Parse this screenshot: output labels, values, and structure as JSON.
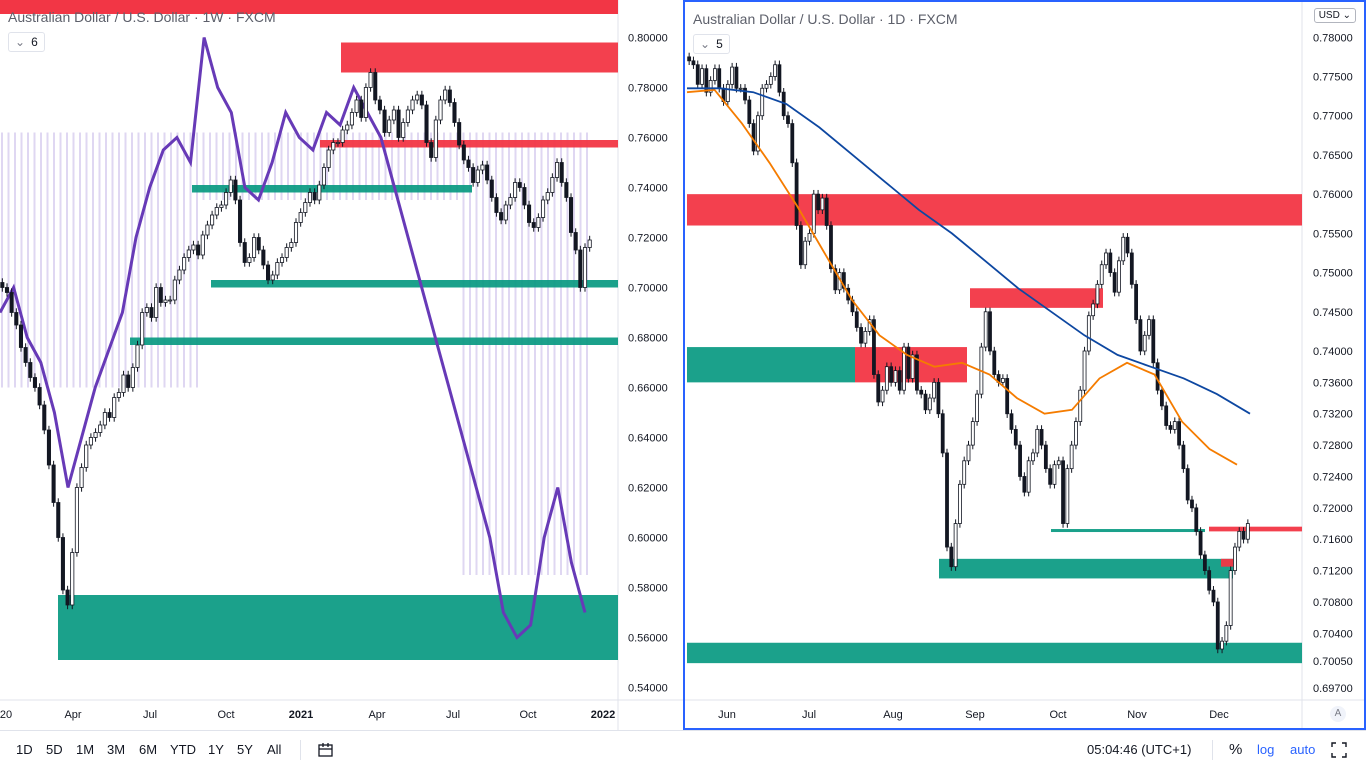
{
  "left_chart": {
    "title": "Australian Dollar / U.S. Dollar · 1W · FXCM",
    "interval_badge": "6"
  },
  "right_chart": {
    "title": "Australian Dollar / U.S. Dollar · 1D · FXCM",
    "interval_badge": "5",
    "currency": "USD",
    "auto_label": "A"
  },
  "bottom_bar": {
    "ranges": [
      "1D",
      "5D",
      "1M",
      "3M",
      "6M",
      "YTD",
      "1Y",
      "5Y",
      "All"
    ],
    "time": "05:04:46 (UTC+1)",
    "percent": "%",
    "log": "log",
    "auto": "auto"
  },
  "colors": {
    "up": "#ffffff",
    "down": "#131722",
    "supply": "#f23645",
    "demand": "#089981",
    "indicator": "#673ab7",
    "ma_fast": "#f57c00",
    "ma_slow": "#0d47a1",
    "accent": "#2962ff"
  },
  "chart_data": [
    {
      "type": "candlestick",
      "title": "Australian Dollar / U.S. Dollar · 1W · FXCM",
      "yticks": [
        "0.80000",
        "0.78000",
        "0.76000",
        "0.74000",
        "0.72000",
        "0.70000",
        "0.68000",
        "0.66000",
        "0.64000",
        "0.62000",
        "0.60000",
        "0.58000",
        "0.56000",
        "0.54000"
      ],
      "ylim": [
        0.535,
        0.815
      ],
      "xticks": [
        "20",
        "Apr",
        "Jul",
        "Oct",
        "2021",
        "Apr",
        "Jul",
        "Oct",
        "2022"
      ],
      "closes": [
        0.7,
        0.698,
        0.69,
        0.685,
        0.676,
        0.67,
        0.664,
        0.66,
        0.653,
        0.643,
        0.629,
        0.614,
        0.6,
        0.579,
        0.573,
        0.594,
        0.62,
        0.628,
        0.637,
        0.64,
        0.642,
        0.645,
        0.65,
        0.648,
        0.656,
        0.658,
        0.665,
        0.66,
        0.668,
        0.677,
        0.69,
        0.692,
        0.688,
        0.7,
        0.694,
        0.695,
        0.695,
        0.703,
        0.707,
        0.712,
        0.715,
        0.717,
        0.713,
        0.721,
        0.725,
        0.729,
        0.732,
        0.733,
        0.738,
        0.743,
        0.735,
        0.718,
        0.71,
        0.712,
        0.72,
        0.715,
        0.709,
        0.703,
        0.705,
        0.71,
        0.712,
        0.716,
        0.718,
        0.726,
        0.73,
        0.734,
        0.738,
        0.735,
        0.741,
        0.748,
        0.755,
        0.758,
        0.758,
        0.763,
        0.765,
        0.77,
        0.775,
        0.768,
        0.78,
        0.786,
        0.775,
        0.771,
        0.762,
        0.767,
        0.771,
        0.76,
        0.766,
        0.771,
        0.775,
        0.777,
        0.773,
        0.758,
        0.752,
        0.767,
        0.775,
        0.779,
        0.774,
        0.766,
        0.757,
        0.751,
        0.748,
        0.742,
        0.747,
        0.749,
        0.743,
        0.736,
        0.73,
        0.727,
        0.733,
        0.736,
        0.742,
        0.74,
        0.733,
        0.726,
        0.724,
        0.728,
        0.735,
        0.738,
        0.744,
        0.75,
        0.742,
        0.736,
        0.722,
        0.715,
        0.7,
        0.716,
        0.719
      ],
      "zones": [
        {
          "kind": "supply",
          "from": 0.786,
          "to": 0.798
        },
        {
          "kind": "supply",
          "from": 0.756,
          "to": 0.759
        },
        {
          "kind": "demand",
          "from": 0.738,
          "to": 0.741
        },
        {
          "kind": "demand",
          "from": 0.7,
          "to": 0.703
        },
        {
          "kind": "demand",
          "from": 0.677,
          "to": 0.68
        },
        {
          "kind": "demand",
          "from": 0.551,
          "to": 0.577
        }
      ]
    },
    {
      "type": "candlestick",
      "title": "Australian Dollar / U.S. Dollar · 1D · FXCM",
      "yticks": [
        "0.78000",
        "0.77500",
        "0.77000",
        "0.76500",
        "0.76000",
        "0.75500",
        "0.75000",
        "0.74500",
        "0.74000",
        "0.73600",
        "0.73200",
        "0.72800",
        "0.72400",
        "0.72000",
        "0.71600",
        "0.71200",
        "0.70800",
        "0.70400",
        "0.70050",
        "0.69700"
      ],
      "ylim": [
        0.6955,
        0.7845
      ],
      "xticks": [
        "Jun",
        "Jul",
        "Aug",
        "Sep",
        "Oct",
        "Nov",
        "Dec"
      ],
      "closes": [
        0.777,
        0.7765,
        0.774,
        0.776,
        0.773,
        0.7745,
        0.776,
        0.7735,
        0.7718,
        0.774,
        0.7762,
        0.7735,
        0.7735,
        0.772,
        0.769,
        0.7655,
        0.77,
        0.7735,
        0.774,
        0.775,
        0.7765,
        0.773,
        0.77,
        0.769,
        0.764,
        0.756,
        0.751,
        0.754,
        0.755,
        0.76,
        0.758,
        0.7595,
        0.756,
        0.7505,
        0.7478,
        0.75,
        0.748,
        0.7465,
        0.745,
        0.743,
        0.741,
        0.7425,
        0.744,
        0.737,
        0.7335,
        0.735,
        0.738,
        0.736,
        0.7375,
        0.735,
        0.7405,
        0.7365,
        0.7395,
        0.735,
        0.7345,
        0.7325,
        0.734,
        0.736,
        0.732,
        0.727,
        0.715,
        0.7125,
        0.718,
        0.723,
        0.726,
        0.728,
        0.731,
        0.7345,
        0.7405,
        0.745,
        0.74,
        0.737,
        0.736,
        0.7365,
        0.732,
        0.73,
        0.728,
        0.724,
        0.722,
        0.726,
        0.727,
        0.73,
        0.728,
        0.725,
        0.723,
        0.7255,
        0.726,
        0.718,
        0.725,
        0.728,
        0.731,
        0.735,
        0.74,
        0.7445,
        0.746,
        0.7485,
        0.751,
        0.7525,
        0.75,
        0.7475,
        0.7515,
        0.7545,
        0.7525,
        0.7485,
        0.744,
        0.74,
        0.742,
        0.744,
        0.7385,
        0.735,
        0.733,
        0.7305,
        0.73,
        0.731,
        0.728,
        0.725,
        0.721,
        0.72,
        0.717,
        0.714,
        0.712,
        0.7095,
        0.708,
        0.702,
        0.703,
        0.705,
        0.712,
        0.715,
        0.717,
        0.716,
        0.718
      ],
      "series": [
        {
          "name": "",
          "color": "#f57c00",
          "values": [
            0.773,
            0.7733,
            0.769,
            0.764,
            0.7585,
            0.7525,
            0.7465,
            0.742,
            0.7395,
            0.738,
            0.7385,
            0.737,
            0.734,
            0.732,
            0.7325,
            0.7365,
            0.7385,
            0.737,
            0.731,
            0.7275,
            0.7255
          ]
        },
        {
          "name": "",
          "color": "#0d47a1",
          "values": [
            0.7735,
            0.7735,
            0.773,
            0.7715,
            0.7685,
            0.765,
            0.7615,
            0.758,
            0.755,
            0.7515,
            0.748,
            0.745,
            0.742,
            0.7395,
            0.738,
            0.7365,
            0.7345,
            0.732
          ]
        }
      ],
      "zones": [
        {
          "kind": "supply",
          "from": 0.756,
          "to": 0.76
        },
        {
          "kind": "supply",
          "from": 0.7455,
          "to": 0.748
        },
        {
          "kind": "supply",
          "from": 0.736,
          "to": 0.7405
        },
        {
          "kind": "demand",
          "from": 0.736,
          "to": 0.7405
        },
        {
          "kind": "demand",
          "from": 0.717,
          "to": 0.7173
        },
        {
          "kind": "demand",
          "from": 0.711,
          "to": 0.7135
        },
        {
          "kind": "supply",
          "from": 0.7125,
          "to": 0.7135
        },
        {
          "kind": "supply",
          "from": 0.717,
          "to": 0.7176
        },
        {
          "kind": "demand",
          "from": 0.7002,
          "to": 0.7028
        }
      ]
    }
  ]
}
